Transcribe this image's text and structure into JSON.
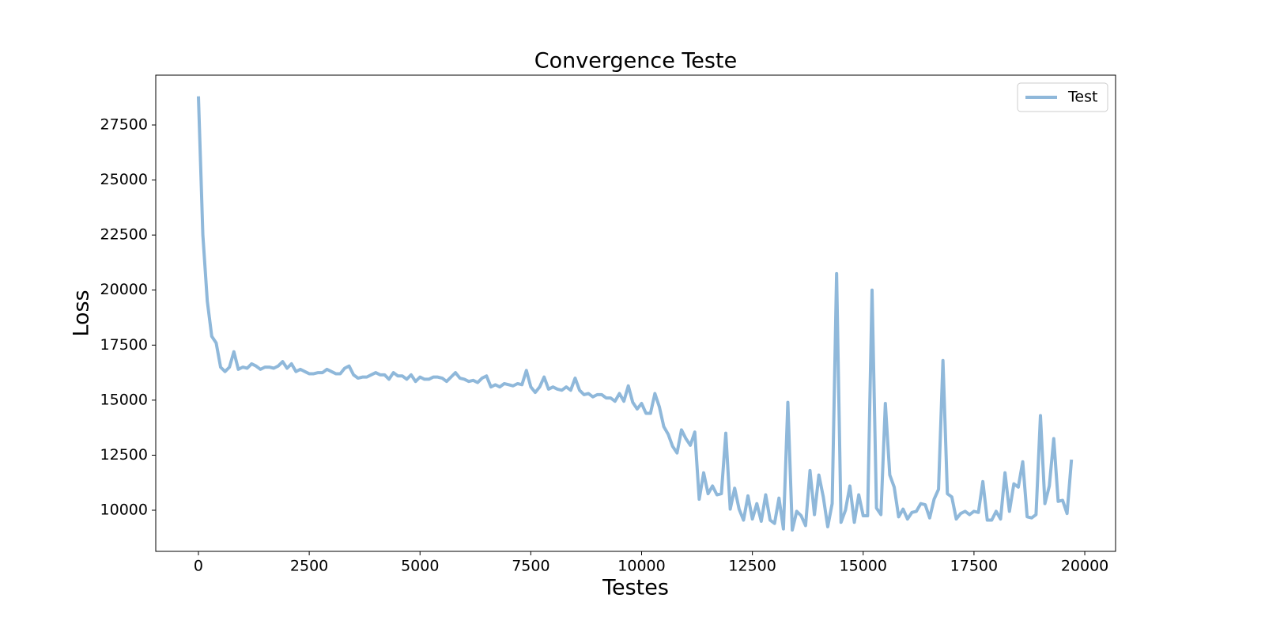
{
  "chart_data": {
    "type": "line",
    "title": "Convergence Teste",
    "xlabel": "Testes",
    "ylabel": "Loss",
    "x": [
      0,
      100,
      200,
      300,
      400,
      500,
      600,
      700,
      800,
      900,
      1000,
      1100,
      1200,
      1300,
      1400,
      1500,
      1600,
      1700,
      1800,
      1900,
      2000,
      2100,
      2200,
      2300,
      2400,
      2500,
      2600,
      2700,
      2800,
      2900,
      3000,
      3100,
      3200,
      3300,
      3400,
      3500,
      3600,
      3700,
      3800,
      3900,
      4000,
      4100,
      4200,
      4300,
      4400,
      4500,
      4600,
      4700,
      4800,
      4900,
      5000,
      5100,
      5200,
      5300,
      5400,
      5500,
      5600,
      5700,
      5800,
      5900,
      6000,
      6100,
      6200,
      6300,
      6400,
      6500,
      6600,
      6700,
      6800,
      6900,
      7000,
      7100,
      7200,
      7300,
      7400,
      7500,
      7600,
      7700,
      7800,
      7900,
      8000,
      8100,
      8200,
      8300,
      8400,
      8500,
      8600,
      8700,
      8800,
      8900,
      9000,
      9100,
      9200,
      9300,
      9400,
      9500,
      9600,
      9700,
      9800,
      9900,
      10000,
      10100,
      10200,
      10300,
      10400,
      10500,
      10600,
      10700,
      10800,
      10900,
      11000,
      11100,
      11200,
      11300,
      11400,
      11500,
      11600,
      11700,
      11800,
      11900,
      12000,
      12100,
      12200,
      12300,
      12400,
      12500,
      12600,
      12700,
      12800,
      12900,
      13000,
      13100,
      13200,
      13300,
      13400,
      13500,
      13600,
      13700,
      13800,
      13900,
      14000,
      14100,
      14200,
      14300,
      14400,
      14500,
      14600,
      14700,
      14800,
      14900,
      15000,
      15100,
      15200,
      15300,
      15400,
      15500,
      15600,
      15700,
      15800,
      15900,
      16000,
      16100,
      16200,
      16300,
      16400,
      16500,
      16600,
      16700,
      16800,
      16900,
      17000,
      17100,
      17200,
      17300,
      17400,
      17500,
      17600,
      17700,
      17800,
      17900,
      18000,
      18100,
      18200,
      18300,
      18400,
      18500,
      18600,
      18700,
      18800,
      18900,
      19000,
      19100,
      19200,
      19300,
      19400,
      19500,
      19600,
      19700
    ],
    "series": [
      {
        "name": "Test",
        "color": "#8fb8da",
        "values": [
          28800,
          22500,
          19500,
          17900,
          17600,
          16500,
          16300,
          16500,
          17200,
          16400,
          16500,
          16450,
          16650,
          16550,
          16400,
          16500,
          16500,
          16450,
          16550,
          16750,
          16450,
          16650,
          16300,
          16400,
          16300,
          16200,
          16200,
          16250,
          16250,
          16400,
          16300,
          16200,
          16200,
          16450,
          16550,
          16150,
          16000,
          16050,
          16050,
          16150,
          16250,
          16150,
          16150,
          15950,
          16250,
          16100,
          16100,
          15950,
          16150,
          15850,
          16050,
          15950,
          15950,
          16050,
          16050,
          16000,
          15850,
          16050,
          16250,
          16000,
          15950,
          15850,
          15900,
          15800,
          16000,
          16100,
          15600,
          15700,
          15600,
          15750,
          15700,
          15650,
          15750,
          15700,
          16350,
          15600,
          15350,
          15600,
          16050,
          15500,
          15600,
          15500,
          15450,
          15600,
          15450,
          16000,
          15450,
          15250,
          15300,
          15150,
          15250,
          15250,
          15100,
          15100,
          14950,
          15300,
          14950,
          15650,
          14900,
          14600,
          14850,
          14400,
          14400,
          15300,
          14700,
          13800,
          13450,
          12900,
          12600,
          13650,
          13250,
          12950,
          13550,
          10500,
          11700,
          10750,
          11100,
          10700,
          10750,
          13500,
          10050,
          11000,
          10050,
          9550,
          10650,
          9600,
          10300,
          9500,
          10700,
          9550,
          9400,
          10550,
          9150,
          14900,
          9100,
          9950,
          9750,
          9300,
          11800,
          9800,
          11600,
          10600,
          9250,
          10300,
          20750,
          9450,
          10000,
          11100,
          9450,
          10700,
          9750,
          9750,
          20000,
          10100,
          9800,
          14850,
          11600,
          11050,
          9700,
          10050,
          9600,
          9900,
          9950,
          10300,
          10250,
          9650,
          10500,
          10950,
          16800,
          10750,
          10600,
          9600,
          9850,
          9950,
          9800,
          9950,
          9900,
          11300,
          9550,
          9550,
          9950,
          9600,
          11700,
          9950,
          11200,
          11050,
          12200,
          9700,
          9650,
          9800,
          14300,
          10300,
          11100,
          13250,
          10400,
          10450,
          9850,
          12300
        ]
      }
    ],
    "xlim": [
      -963,
      20695
    ],
    "ylim": [
      8131,
      29764
    ],
    "xticks": [
      0,
      2500,
      5000,
      7500,
      10000,
      12500,
      15000,
      17500,
      20000
    ],
    "yticks": [
      10000,
      12500,
      15000,
      17500,
      20000,
      22500,
      25000,
      27500
    ],
    "legend": "upper right"
  }
}
